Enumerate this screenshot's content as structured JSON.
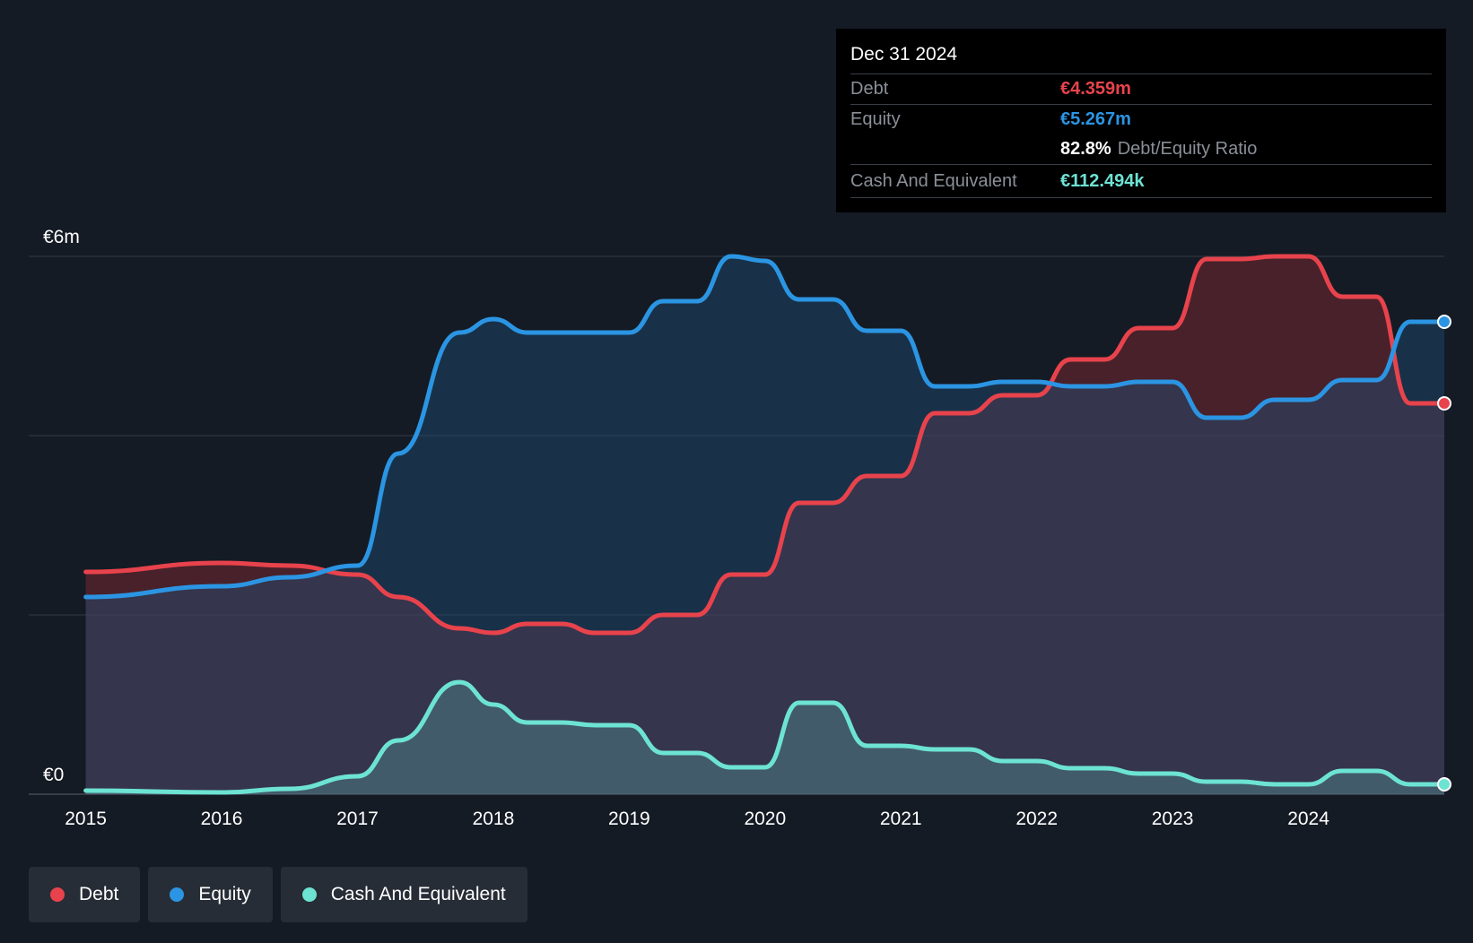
{
  "tooltip": {
    "date": "Dec 31 2024",
    "debt_label": "Debt",
    "debt_value": "€4.359m",
    "equity_label": "Equity",
    "equity_value": "€5.267m",
    "ratio_value": "82.8%",
    "ratio_label": "Debt/Equity Ratio",
    "cash_label": "Cash And Equivalent",
    "cash_value": "€112.494k"
  },
  "legend": {
    "debt": "Debt",
    "equity": "Equity",
    "cash": "Cash And Equivalent"
  },
  "colors": {
    "debt": "#e8434c",
    "equity": "#2b95e3",
    "cash": "#6de3d3",
    "background": "#151b24"
  },
  "chart_data": {
    "type": "area",
    "title": "",
    "xlabel": "",
    "ylabel": "",
    "ylim": [
      0,
      6
    ],
    "y_ticks": [
      {
        "value": 6,
        "label": "€6m"
      },
      {
        "value": 0,
        "label": "€0"
      }
    ],
    "x_ticks": [
      {
        "value": 2015,
        "label": "2015"
      },
      {
        "value": 2016,
        "label": "2016"
      },
      {
        "value": 2017,
        "label": "2017"
      },
      {
        "value": 2018,
        "label": "2018"
      },
      {
        "value": 2019,
        "label": "2019"
      },
      {
        "value": 2020,
        "label": "2020"
      },
      {
        "value": 2021,
        "label": "2021"
      },
      {
        "value": 2022,
        "label": "2022"
      },
      {
        "value": 2023,
        "label": "2023"
      },
      {
        "value": 2024,
        "label": "2024"
      }
    ],
    "xlim": [
      2014.58,
      2025.0
    ],
    "series": [
      {
        "name": "Debt",
        "key": "debt",
        "x": [
          2015.0,
          2016.0,
          2016.5,
          2017.0,
          2017.3,
          2017.75,
          2018.0,
          2018.25,
          2018.5,
          2018.75,
          2019.0,
          2019.25,
          2019.5,
          2019.75,
          2020.0,
          2020.25,
          2020.5,
          2020.75,
          2021.0,
          2021.25,
          2021.5,
          2021.75,
          2022.0,
          2022.25,
          2022.5,
          2022.75,
          2023.0,
          2023.25,
          2023.5,
          2023.75,
          2024.0,
          2024.25,
          2024.5,
          2024.75,
          2025.0
        ],
        "values": [
          2.48,
          2.58,
          2.55,
          2.45,
          2.2,
          1.85,
          1.8,
          1.9,
          1.9,
          1.8,
          1.8,
          2.0,
          2.0,
          2.45,
          2.45,
          3.25,
          3.25,
          3.55,
          3.55,
          4.25,
          4.25,
          4.45,
          4.45,
          4.85,
          4.85,
          5.2,
          5.2,
          5.97,
          5.97,
          6.0,
          6.0,
          5.55,
          5.55,
          4.36,
          4.36
        ]
      },
      {
        "name": "Equity",
        "key": "equity",
        "x": [
          2015.0,
          2016.0,
          2016.5,
          2017.0,
          2017.3,
          2017.75,
          2018.0,
          2018.25,
          2018.5,
          2018.75,
          2019.0,
          2019.25,
          2019.5,
          2019.75,
          2020.0,
          2020.25,
          2020.5,
          2020.75,
          2021.0,
          2021.25,
          2021.5,
          2021.75,
          2022.0,
          2022.25,
          2022.5,
          2022.75,
          2023.0,
          2023.25,
          2023.5,
          2023.75,
          2024.0,
          2024.25,
          2024.5,
          2024.75,
          2025.0
        ],
        "values": [
          2.2,
          2.32,
          2.42,
          2.55,
          3.8,
          5.15,
          5.3,
          5.15,
          5.15,
          5.15,
          5.15,
          5.5,
          5.5,
          6.0,
          5.95,
          5.52,
          5.52,
          5.17,
          5.17,
          4.55,
          4.55,
          4.6,
          4.6,
          4.55,
          4.55,
          4.6,
          4.6,
          4.2,
          4.2,
          4.4,
          4.4,
          4.62,
          4.62,
          5.27,
          5.27
        ]
      },
      {
        "name": "Cash And Equivalent",
        "key": "cash",
        "x": [
          2015.0,
          2016.0,
          2016.5,
          2017.0,
          2017.3,
          2017.75,
          2018.0,
          2018.25,
          2018.5,
          2018.75,
          2019.0,
          2019.25,
          2019.5,
          2019.75,
          2020.0,
          2020.25,
          2020.5,
          2020.75,
          2021.0,
          2021.25,
          2021.5,
          2021.75,
          2022.0,
          2022.25,
          2022.5,
          2022.75,
          2023.0,
          2023.25,
          2023.5,
          2023.75,
          2024.0,
          2024.25,
          2024.5,
          2024.75,
          2025.0
        ],
        "values": [
          0.04,
          0.02,
          0.06,
          0.2,
          0.6,
          1.25,
          1.0,
          0.8,
          0.8,
          0.77,
          0.77,
          0.46,
          0.46,
          0.3,
          0.3,
          1.02,
          1.02,
          0.54,
          0.54,
          0.5,
          0.5,
          0.37,
          0.37,
          0.29,
          0.29,
          0.23,
          0.23,
          0.14,
          0.14,
          0.11,
          0.11,
          0.26,
          0.26,
          0.11,
          0.11
        ]
      }
    ]
  }
}
